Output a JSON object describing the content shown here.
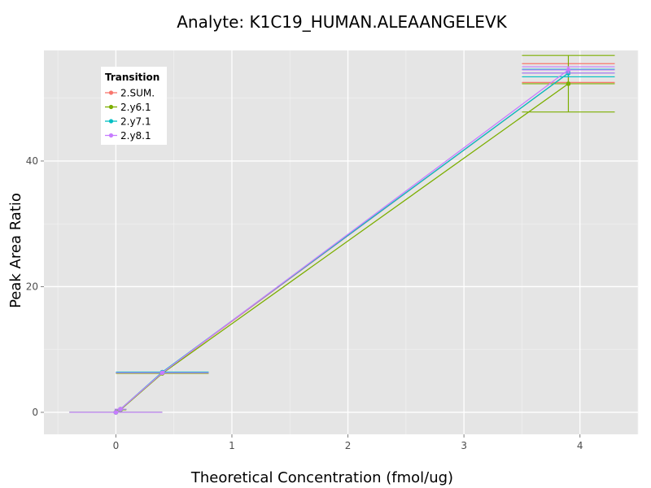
{
  "chart_data": {
    "type": "line",
    "title": "Analyte: K1C19_HUMAN.ALEAANGELEVK",
    "xlabel": "Theoretical Concentration (fmol/ug)",
    "ylabel": "Peak Area Ratio",
    "xlim": [
      -0.62,
      4.5
    ],
    "ylim": [
      -3.5,
      57.6
    ],
    "x_ticks": [
      0,
      1,
      2,
      3,
      4
    ],
    "y_ticks": [
      0,
      20,
      40
    ],
    "grid": true,
    "legend": {
      "title": "Transition",
      "position": "top-left",
      "entries": [
        "2.SUM.",
        "2.y6.1",
        "2.y7.1",
        "2.y8.1"
      ]
    },
    "series": [
      {
        "name": "2.SUM.",
        "color": "#F8766D",
        "points": [
          {
            "x": 0.0,
            "y": 0.0,
            "err_x": 0.4
          },
          {
            "x": 0.04,
            "y": 0.5,
            "err_x": 0.05
          },
          {
            "x": 0.4,
            "y": 6.3,
            "err_x": 0.4
          },
          {
            "x": 3.9,
            "y": 54.0,
            "err_x": 0.4,
            "err_y": 1.5
          }
        ]
      },
      {
        "name": "2.y6.1",
        "color": "#7CAE00",
        "points": [
          {
            "x": 0.0,
            "y": 0.0,
            "err_x": 0.4
          },
          {
            "x": 0.04,
            "y": 0.4,
            "err_x": 0.05
          },
          {
            "x": 0.4,
            "y": 6.2,
            "err_x": 0.4
          },
          {
            "x": 3.9,
            "y": 52.3,
            "err_x": 0.4,
            "err_y": 4.5
          }
        ]
      },
      {
        "name": "2.y7.1",
        "color": "#00BFC4",
        "points": [
          {
            "x": 0.0,
            "y": 0.0,
            "err_x": 0.4
          },
          {
            "x": 0.04,
            "y": 0.5,
            "err_x": 0.05
          },
          {
            "x": 0.4,
            "y": 6.4,
            "err_x": 0.4
          },
          {
            "x": 3.9,
            "y": 54.0,
            "err_x": 0.4,
            "err_y": 0.6
          }
        ]
      },
      {
        "name": "2.y8.1",
        "color": "#C77CFF",
        "points": [
          {
            "x": 0.0,
            "y": 0.0,
            "err_x": 0.4
          },
          {
            "x": 0.04,
            "y": 0.5,
            "err_x": 0.05
          },
          {
            "x": 0.4,
            "y": 6.3,
            "err_x": 0.4
          },
          {
            "x": 3.9,
            "y": 54.5,
            "err_x": 0.4,
            "err_y": 0.5
          }
        ]
      }
    ]
  }
}
